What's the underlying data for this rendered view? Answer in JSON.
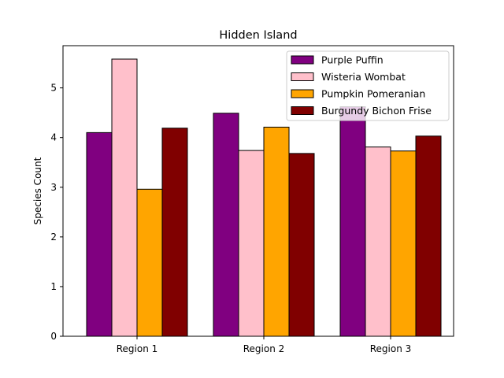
{
  "chart_data": {
    "type": "bar",
    "title": "Hidden Island",
    "xlabel": "",
    "ylabel": "Species Count",
    "categories": [
      "Region 1",
      "Region 2",
      "Region 3"
    ],
    "ylim": [
      0,
      5.85
    ],
    "yticks": [
      0,
      1,
      2,
      3,
      4,
      5
    ],
    "grid": false,
    "legend": "top-right",
    "series": [
      {
        "name": "Purple Puffin",
        "color": "#800080",
        "values": [
          4.1,
          4.49,
          4.62
        ]
      },
      {
        "name": "Wisteria Wombat",
        "color": "#ffc0cb",
        "values": [
          5.58,
          3.74,
          3.81
        ]
      },
      {
        "name": "Pumpkin Pomeranian",
        "color": "#ffa500",
        "values": [
          2.96,
          4.21,
          3.73
        ]
      },
      {
        "name": "Burgundy Bichon Frise",
        "color": "#800000",
        "values": [
          4.19,
          3.68,
          4.03
        ]
      }
    ]
  }
}
